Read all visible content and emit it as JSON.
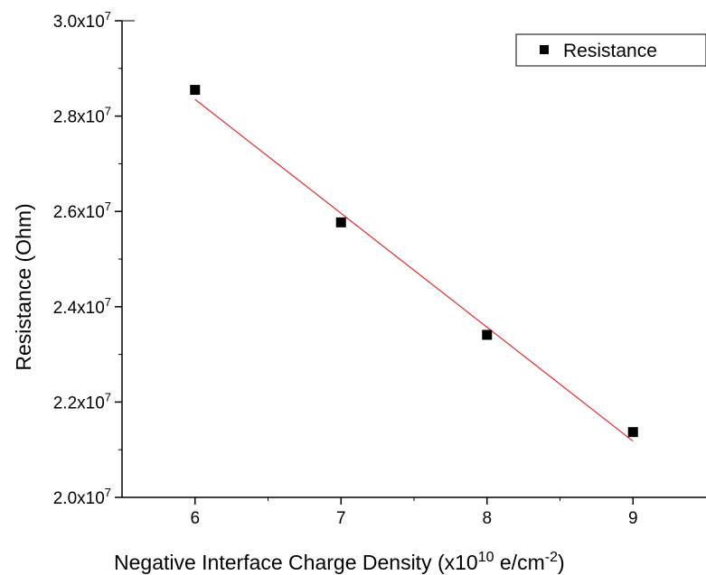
{
  "colors": {
    "marker": "#000000",
    "fit_line": "#e8262b",
    "axis": "#000000",
    "background": "#ffffff"
  },
  "chart_data": {
    "type": "scatter",
    "title": "",
    "xlabel": {
      "main": "Negative Interface Charge Density (x10",
      "exp1": "10",
      "mid": " e/cm",
      "exp2": "-2",
      "end": ")"
    },
    "ylabel": "Resistance (Ohm)",
    "xlim": [
      5.5,
      9.5
    ],
    "ylim": [
      20000000,
      30000000
    ],
    "x_ticks": [
      {
        "value": 6,
        "label": "6"
      },
      {
        "value": 7,
        "label": "7"
      },
      {
        "value": 8,
        "label": "8"
      },
      {
        "value": 9,
        "label": "9"
      }
    ],
    "y_ticks": [
      {
        "value": 20000000,
        "base": "2.0x10",
        "exp": "7"
      },
      {
        "value": 22000000,
        "base": "2.2x10",
        "exp": "7"
      },
      {
        "value": 24000000,
        "base": "2.4x10",
        "exp": "7"
      },
      {
        "value": 26000000,
        "base": "2.6x10",
        "exp": "7"
      },
      {
        "value": 28000000,
        "base": "2.8x10",
        "exp": "7"
      },
      {
        "value": 30000000,
        "base": "3.0x10",
        "exp": "7"
      }
    ],
    "series": [
      {
        "name": "Resistance",
        "marker": "square",
        "x": [
          6,
          7,
          8,
          9
        ],
        "y": [
          28550000,
          25770000,
          23410000,
          21370000
        ]
      }
    ],
    "fit_line": {
      "x": [
        6,
        9
      ],
      "y": [
        28350000,
        21180000
      ]
    },
    "legend": {
      "position": "top-right",
      "entries": [
        "Resistance"
      ]
    },
    "grid": false
  }
}
